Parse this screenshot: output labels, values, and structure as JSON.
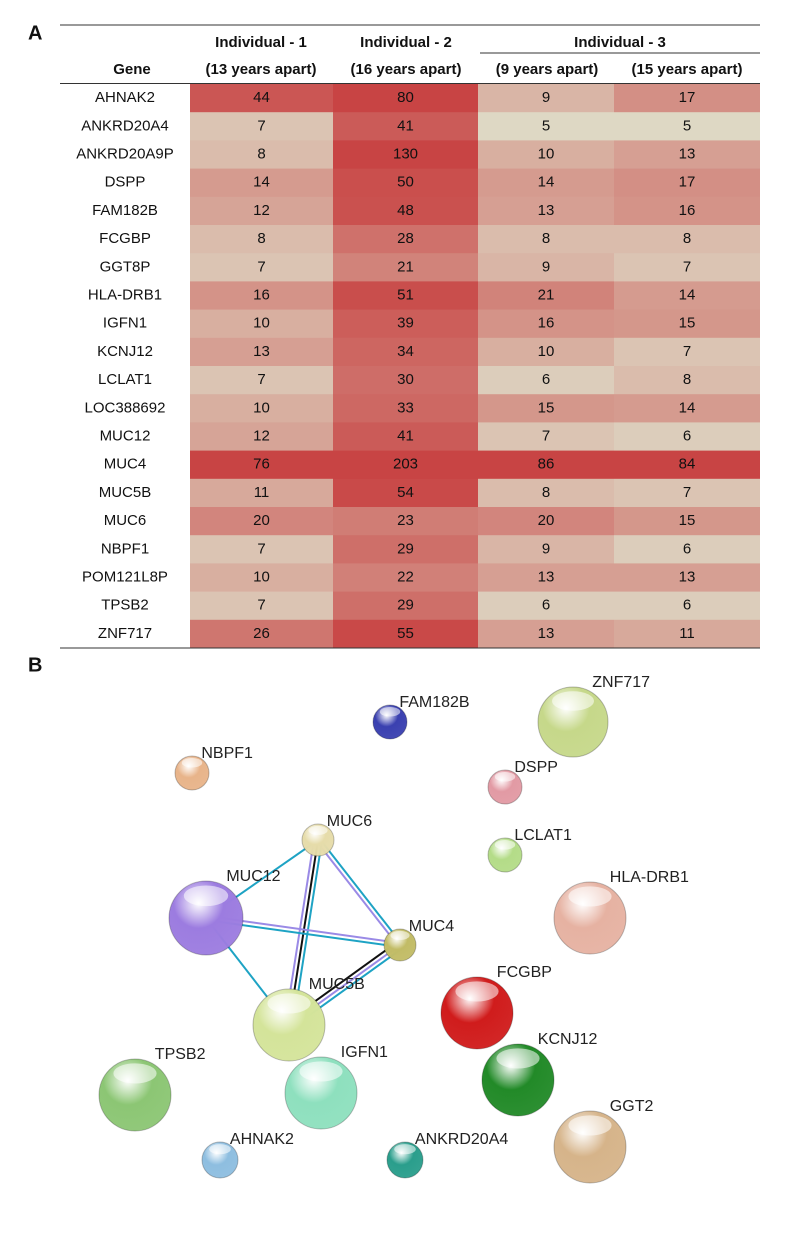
{
  "panel_a": {
    "label": "A",
    "header": {
      "gene": "Gene",
      "groups": [
        "Individual - 1",
        "Individual - 2",
        "Individual - 3"
      ],
      "subheaders": [
        "(13 years apart)",
        "(16 years apart)",
        "(9 years apart)",
        "(15 years apart)"
      ]
    },
    "rows": [
      {
        "gene": "AHNAK2",
        "values": [
          44,
          80,
          9,
          17
        ]
      },
      {
        "gene": "ANKRD20A4",
        "values": [
          7,
          41,
          5,
          5
        ]
      },
      {
        "gene": "ANKRD20A9P",
        "values": [
          8,
          130,
          10,
          13
        ]
      },
      {
        "gene": "DSPP",
        "values": [
          14,
          50,
          14,
          17
        ]
      },
      {
        "gene": "FAM182B",
        "values": [
          12,
          48,
          13,
          16
        ]
      },
      {
        "gene": "FCGBP",
        "values": [
          8,
          28,
          8,
          8
        ]
      },
      {
        "gene": "GGT8P",
        "values": [
          7,
          21,
          9,
          7
        ]
      },
      {
        "gene": "HLA-DRB1",
        "values": [
          16,
          51,
          21,
          14
        ]
      },
      {
        "gene": "IGFN1",
        "values": [
          10,
          39,
          16,
          15
        ]
      },
      {
        "gene": "KCNJ12",
        "values": [
          13,
          34,
          10,
          7
        ]
      },
      {
        "gene": "LCLAT1",
        "values": [
          7,
          30,
          6,
          8
        ]
      },
      {
        "gene": "LOC388692",
        "values": [
          10,
          33,
          15,
          14
        ]
      },
      {
        "gene": "MUC12",
        "values": [
          12,
          41,
          7,
          6
        ]
      },
      {
        "gene": "MUC4",
        "values": [
          76,
          203,
          86,
          84
        ]
      },
      {
        "gene": "MUC5B",
        "values": [
          11,
          54,
          8,
          7
        ]
      },
      {
        "gene": "MUC6",
        "values": [
          20,
          23,
          20,
          15
        ]
      },
      {
        "gene": "NBPF1",
        "values": [
          7,
          29,
          9,
          6
        ]
      },
      {
        "gene": "POM121L8P",
        "values": [
          10,
          22,
          13,
          13
        ]
      },
      {
        "gene": "TPSB2",
        "values": [
          7,
          29,
          6,
          6
        ]
      },
      {
        "gene": "ZNF717",
        "values": [
          26,
          55,
          13,
          11
        ]
      }
    ]
  },
  "panel_b": {
    "label": "B",
    "nodes": [
      {
        "label": "FAM182B"
      },
      {
        "label": "ZNF717"
      },
      {
        "label": "NBPF1"
      },
      {
        "label": "DSPP"
      },
      {
        "label": "MUC6"
      },
      {
        "label": "LCLAT1"
      },
      {
        "label": "MUC12"
      },
      {
        "label": "HLA-DRB1"
      },
      {
        "label": "MUC4"
      },
      {
        "label": "FCGBP"
      },
      {
        "label": "MUC5B"
      },
      {
        "label": "KCNJ12"
      },
      {
        "label": "TPSB2"
      },
      {
        "label": "IGFN1"
      },
      {
        "label": "GGT2"
      },
      {
        "label": "AHNAK2"
      },
      {
        "label": "ANKRD20A4"
      }
    ]
  }
}
